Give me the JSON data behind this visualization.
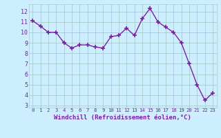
{
  "x": [
    0,
    1,
    2,
    3,
    4,
    5,
    6,
    7,
    8,
    9,
    10,
    11,
    12,
    13,
    14,
    15,
    16,
    17,
    18,
    19,
    20,
    21,
    22,
    23
  ],
  "y": [
    11.1,
    10.6,
    10.0,
    10.0,
    9.0,
    8.5,
    8.8,
    8.8,
    8.6,
    8.5,
    9.6,
    9.7,
    10.4,
    9.7,
    11.3,
    12.3,
    11.0,
    10.5,
    10.0,
    9.0,
    7.0,
    5.0,
    3.5,
    4.2
  ],
  "line_color": "#7b1fa2",
  "marker": "+",
  "marker_color": "#7b1fa2",
  "bg_color": "#cceeff",
  "grid_color": "#aacccc",
  "xlabel": "Windchill (Refroidissement éolien,°C)",
  "xlim": [
    -0.5,
    23.5
  ],
  "ylim": [
    2.8,
    12.7
  ],
  "yticks": [
    3,
    4,
    5,
    6,
    7,
    8,
    9,
    10,
    11,
    12
  ],
  "xticks": [
    0,
    1,
    2,
    3,
    4,
    5,
    6,
    7,
    8,
    9,
    10,
    11,
    12,
    13,
    14,
    15,
    16,
    17,
    18,
    19,
    20,
    21,
    22,
    23
  ],
  "tick_color": "#7b1fa2",
  "label_color": "#7b1fa2",
  "linewidth": 1.0,
  "markersize": 5,
  "xlabel_fontsize": 6.5,
  "xtick_fontsize": 5.2,
  "ytick_fontsize": 6.0
}
